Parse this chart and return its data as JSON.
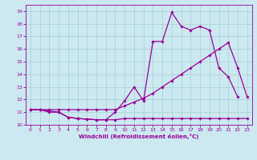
{
  "xlabel": "Windchill (Refroidissement éolien,°C)",
  "background_color": "#cce8f0",
  "line_color": "#990099",
  "xlim": [
    -0.5,
    23.5
  ],
  "ylim": [
    10,
    19.5
  ],
  "yticks": [
    10,
    11,
    12,
    13,
    14,
    15,
    16,
    17,
    18,
    19
  ],
  "xticks": [
    0,
    1,
    2,
    3,
    4,
    5,
    6,
    7,
    8,
    9,
    10,
    11,
    12,
    13,
    14,
    15,
    16,
    17,
    18,
    19,
    20,
    21,
    22,
    23
  ],
  "line1_x": [
    0,
    1,
    2,
    3,
    4,
    5,
    6,
    7,
    8,
    9,
    10,
    11,
    12,
    13,
    14,
    15,
    16,
    17,
    18,
    19,
    20,
    21,
    22,
    23
  ],
  "line1_y": [
    11.2,
    11.2,
    11.1,
    11.0,
    10.6,
    10.5,
    10.45,
    10.4,
    10.4,
    10.4,
    10.5,
    10.5,
    10.5,
    10.5,
    10.5,
    10.5,
    10.5,
    10.5,
    10.5,
    10.5,
    10.5,
    10.5,
    10.5,
    10.5
  ],
  "line2_x": [
    0,
    1,
    2,
    3,
    4,
    5,
    6,
    7,
    8,
    9,
    10,
    11,
    12,
    13,
    14,
    15,
    16,
    17,
    18,
    19,
    20,
    21,
    22,
    23
  ],
  "line2_y": [
    11.2,
    11.2,
    11.2,
    11.2,
    11.2,
    11.2,
    11.2,
    11.2,
    11.2,
    11.2,
    11.5,
    11.8,
    12.1,
    12.5,
    13.0,
    13.5,
    14.0,
    14.5,
    15.0,
    15.5,
    16.0,
    16.5,
    14.5,
    12.2
  ],
  "line3_x": [
    0,
    1,
    2,
    3,
    4,
    5,
    6,
    7,
    8,
    9,
    10,
    11,
    12,
    13,
    14,
    15,
    16,
    17,
    18,
    19,
    20,
    21,
    22,
    23
  ],
  "line3_y": [
    11.2,
    11.2,
    11.0,
    11.0,
    10.6,
    10.5,
    10.45,
    10.4,
    10.4,
    11.0,
    11.9,
    13.0,
    11.9,
    16.6,
    16.6,
    18.9,
    17.8,
    17.5,
    17.8,
    17.5,
    14.5,
    13.8,
    12.2,
    null
  ]
}
